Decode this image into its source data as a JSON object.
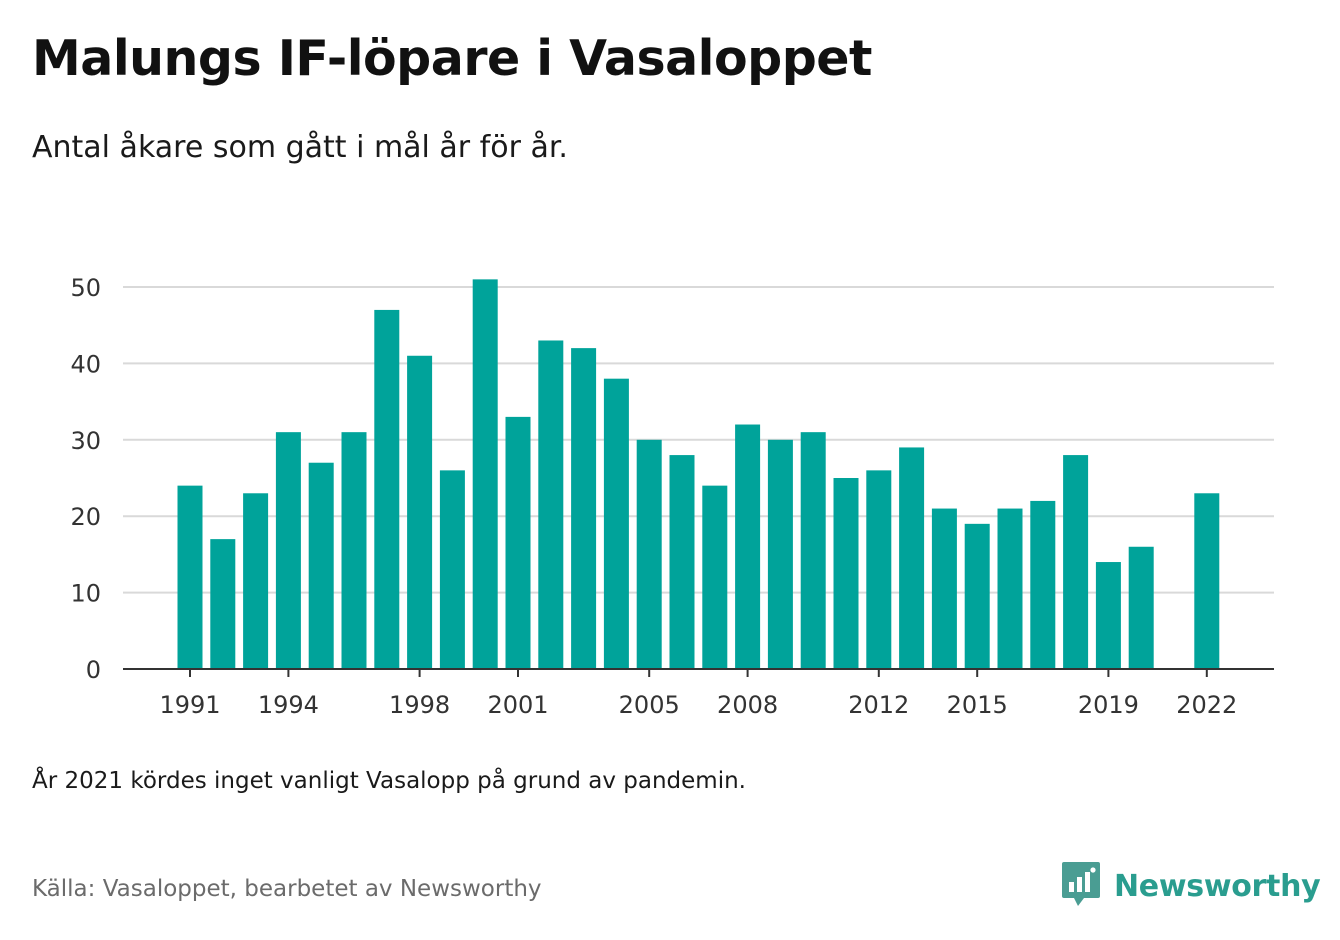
{
  "header": {
    "title": "Malungs IF-löpare i Vasaloppet",
    "subtitle": "Antal åkare som gått i mål år för år."
  },
  "footer": {
    "note": "År 2021 kördes inget vanligt Vasalopp på grund av pandemin.",
    "source": "Källa: Vasaloppet, bearbetet av Newsworthy",
    "brand_name": "Newsworthy"
  },
  "icons": {
    "brand_logo": "newsworthy-logo-icon"
  },
  "colors": {
    "bar": "#00a39a",
    "grid": "#d9d9d9",
    "axis": "#333333",
    "brand": "#2a9d8f"
  },
  "chart_data": {
    "type": "bar",
    "title": "Malungs IF-löpare i Vasaloppet",
    "subtitle": "Antal åkare som gått i mål år för år.",
    "xlabel": "",
    "ylabel": "",
    "ylim": [
      0,
      50
    ],
    "yticks": [
      0,
      10,
      20,
      30,
      40,
      50
    ],
    "xtick_labels": [
      "1991",
      "1994",
      "1998",
      "2001",
      "2005",
      "2008",
      "2012",
      "2015",
      "2019",
      "2022"
    ],
    "grid": true,
    "categories": [
      "1991",
      "1992",
      "1993",
      "1994",
      "1995",
      "1996",
      "1997",
      "1998",
      "1999",
      "2000",
      "2001",
      "2002",
      "2003",
      "2004",
      "2005",
      "2006",
      "2007",
      "2008",
      "2009",
      "2010",
      "2011",
      "2012",
      "2013",
      "2014",
      "2015",
      "2016",
      "2017",
      "2018",
      "2019",
      "2020",
      "2021",
      "2022"
    ],
    "values": [
      24,
      17,
      23,
      31,
      27,
      31,
      47,
      41,
      26,
      51,
      33,
      43,
      42,
      38,
      30,
      28,
      24,
      32,
      30,
      31,
      25,
      26,
      29,
      21,
      19,
      21,
      22,
      28,
      14,
      16,
      null,
      23
    ]
  }
}
